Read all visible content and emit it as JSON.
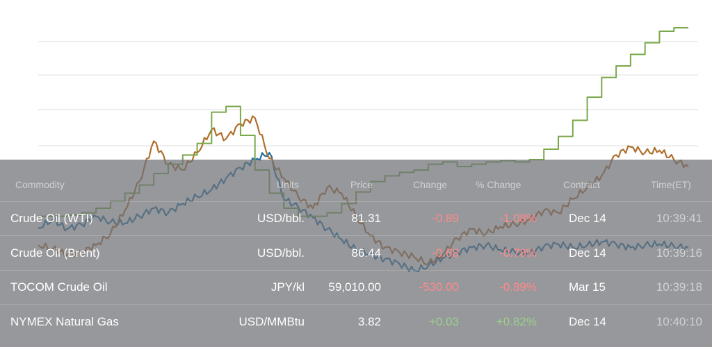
{
  "chart_data": {
    "type": "line",
    "title": "",
    "xlabel": "",
    "ylabel": "",
    "grid": true,
    "legend": "none",
    "colors": {
      "wti": "#1f6fa3",
      "brent": "#b06e2c",
      "step": "#7aa84a",
      "wti_light": "#6ab6e4",
      "brent_light": "#e0a36c"
    },
    "series": [
      {
        "key": "wti",
        "values": [
          45,
          52,
          44,
          48,
          55,
          50,
          49,
          55,
          62,
          58,
          66,
          72,
          78,
          88,
          97,
          104,
          110,
          70,
          63,
          54,
          44,
          35,
          26,
          22,
          18,
          14,
          8,
          12,
          19,
          24,
          28,
          30,
          26,
          24,
          23,
          29,
          31,
          28,
          30,
          33,
          31,
          28,
          30,
          31,
          29,
          28
        ]
      },
      {
        "key": "brent",
        "values": [
          30,
          27,
          22,
          24,
          30,
          40,
          60,
          85,
          120,
          100,
          95,
          110,
          130,
          122,
          135,
          140,
          105,
          88,
          72,
          62,
          80,
          75,
          55,
          38,
          28,
          24,
          20,
          14,
          22,
          36,
          44,
          40,
          46,
          48,
          52,
          60,
          58,
          70,
          80,
          90,
          108,
          115,
          110,
          112,
          104,
          98
        ]
      },
      {
        "key": "step",
        "values": [
          55,
          55,
          56,
          58,
          62,
          68,
          75,
          82,
          92,
          100,
          108,
          118,
          145,
          150,
          125,
          95,
          75,
          62,
          55,
          55,
          58,
          66,
          76,
          85,
          90,
          93,
          95,
          100,
          102,
          98,
          100,
          102,
          103,
          102,
          104,
          113,
          124,
          138,
          158,
          175,
          185,
          195,
          205,
          215,
          218,
          218
        ]
      }
    ]
  },
  "table": {
    "headers": {
      "commodity": "Commodity",
      "units": "Units",
      "price": "Price",
      "change": "Change",
      "pct_change": "% Change",
      "contract": "Contract",
      "time": "Time(ET)"
    },
    "rows": [
      {
        "commodity": "Crude Oil (WTI)",
        "units": "USD/bbl.",
        "price": "81.31",
        "change": "-0.89",
        "pct_change": "-1.08%",
        "contract": "Dec 14",
        "time": "10:39:41",
        "trend": "neg"
      },
      {
        "commodity": "Crude Oil (Brent)",
        "units": "USD/bbl.",
        "price": "86.44",
        "change": "-0.68",
        "pct_change": "-0.78%",
        "contract": "Dec 14",
        "time": "10:39:16",
        "trend": "neg"
      },
      {
        "commodity": "TOCOM Crude Oil",
        "units": "JPY/kl",
        "price": "59,010.00",
        "change": "-530.00",
        "pct_change": "-0.89%",
        "contract": "Mar 15",
        "time": "10:39:18",
        "trend": "neg"
      },
      {
        "commodity": "NYMEX Natural Gas",
        "units": "USD/MMBtu",
        "price": "3.82",
        "change": "+0.03",
        "pct_change": "+0.82%",
        "contract": "Dec 14",
        "time": "10:40:10",
        "trend": "pos"
      }
    ]
  }
}
